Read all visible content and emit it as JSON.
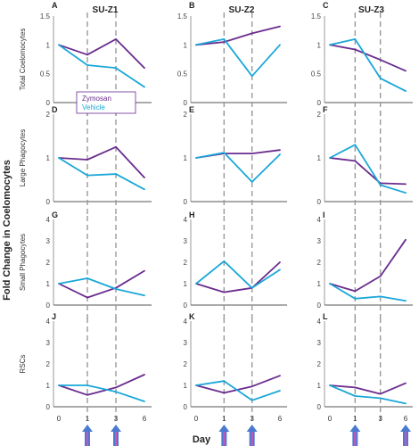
{
  "figure": {
    "y_axis_title": "Fold Change in Coelomocytes",
    "x_axis_title": "Day",
    "columns": [
      "SU-Z1",
      "SU-Z2",
      "SU-Z3"
    ],
    "rows": [
      {
        "label": "Total Coelomocytes",
        "ylim": [
          0,
          1.5
        ],
        "ticks": [
          "0",
          "0.5",
          "1",
          "1.5"
        ]
      },
      {
        "label": "Large Phagocytes",
        "ylim": [
          0,
          2
        ],
        "ticks": [
          "0",
          "1",
          "2"
        ]
      },
      {
        "label": "Small Phagocytes",
        "ylim": [
          0,
          4
        ],
        "ticks": [
          "0",
          "1",
          "2",
          "3",
          "4"
        ]
      },
      {
        "label": "RSCs",
        "ylim": [
          0,
          4
        ],
        "ticks": [
          "0",
          "1",
          "2",
          "3",
          "4"
        ]
      }
    ],
    "x_ticks": [
      "0",
      "1",
      "3",
      "6"
    ],
    "x_tick_columns": [
      0,
      1
    ],
    "x_tick_column3": [
      "0",
      "1",
      "3",
      "6"
    ],
    "legend": [
      {
        "name": "Zymosan",
        "color": "#6a2c8e"
      },
      {
        "name": "Vehicle",
        "color": "#1aa7d9"
      }
    ],
    "dashed_line_days": [
      1,
      3
    ],
    "arrow_days_by_column": [
      [
        1,
        3
      ],
      [
        1,
        3
      ],
      [
        1,
        6
      ]
    ],
    "arrow_color_outer": "#4a7bd0",
    "arrow_color_inner": "#d64fb5",
    "zymosan_color": "#6a2c8e",
    "vehicle_color": "#1aa7d9"
  },
  "chart_data": [
    {
      "type": "line",
      "panel": "A",
      "column": "SU-Z1",
      "row": "Total Coelomocytes",
      "x": [
        "0",
        "1",
        "3",
        "6"
      ],
      "ylim": [
        0,
        1.5
      ],
      "series": [
        {
          "name": "Zymosan",
          "values": [
            1.0,
            0.83,
            1.1,
            0.6
          ]
        },
        {
          "name": "Vehicle",
          "values": [
            1.0,
            0.65,
            0.6,
            0.27
          ]
        }
      ]
    },
    {
      "type": "line",
      "panel": "B",
      "column": "SU-Z2",
      "row": "Total Coelomocytes",
      "x": [
        "0",
        "1",
        "3",
        "6"
      ],
      "ylim": [
        0,
        1.5
      ],
      "series": [
        {
          "name": "Zymosan",
          "values": [
            1.0,
            1.05,
            1.2,
            1.32
          ]
        },
        {
          "name": "Vehicle",
          "values": [
            1.0,
            1.1,
            0.46,
            1.0
          ]
        }
      ]
    },
    {
      "type": "line",
      "panel": "C",
      "column": "SU-Z3",
      "row": "Total Coelomocytes",
      "x": [
        "0",
        "1",
        "3",
        "6"
      ],
      "ylim": [
        0,
        1.5
      ],
      "series": [
        {
          "name": "Zymosan",
          "values": [
            1.0,
            0.92,
            0.74,
            0.55
          ]
        },
        {
          "name": "Vehicle",
          "values": [
            1.0,
            1.1,
            0.42,
            0.2
          ]
        }
      ]
    },
    {
      "type": "line",
      "panel": "D",
      "column": "SU-Z1",
      "row": "Large Phagocytes",
      "x": [
        "0",
        "1",
        "3",
        "6"
      ],
      "ylim": [
        0,
        2
      ],
      "series": [
        {
          "name": "Zymosan",
          "values": [
            1.0,
            0.96,
            1.25,
            0.55
          ]
        },
        {
          "name": "Vehicle",
          "values": [
            1.0,
            0.6,
            0.63,
            0.28
          ]
        }
      ]
    },
    {
      "type": "line",
      "panel": "E",
      "column": "SU-Z2",
      "row": "Large Phagocytes",
      "x": [
        "0",
        "1",
        "3",
        "6"
      ],
      "ylim": [
        0,
        2
      ],
      "series": [
        {
          "name": "Zymosan",
          "values": [
            1.0,
            1.1,
            1.1,
            1.18
          ]
        },
        {
          "name": "Vehicle",
          "values": [
            1.0,
            1.12,
            0.45,
            1.08
          ]
        }
      ]
    },
    {
      "type": "line",
      "panel": "F",
      "column": "SU-Z3",
      "row": "Large Phagocytes",
      "x": [
        "0",
        "1",
        "3",
        "6"
      ],
      "ylim": [
        0,
        2
      ],
      "series": [
        {
          "name": "Zymosan",
          "values": [
            1.0,
            0.93,
            0.42,
            0.4
          ]
        },
        {
          "name": "Vehicle",
          "values": [
            1.0,
            1.3,
            0.38,
            0.2
          ]
        }
      ]
    },
    {
      "type": "line",
      "panel": "G",
      "column": "SU-Z1",
      "row": "Small Phagocytes",
      "x": [
        "0",
        "1",
        "3",
        "6"
      ],
      "ylim": [
        0,
        4
      ],
      "series": [
        {
          "name": "Zymosan",
          "values": [
            1.0,
            0.35,
            0.8,
            1.6
          ]
        },
        {
          "name": "Vehicle",
          "values": [
            1.0,
            1.25,
            0.75,
            0.45
          ]
        }
      ]
    },
    {
      "type": "line",
      "panel": "H",
      "column": "SU-Z2",
      "row": "Small Phagocytes",
      "x": [
        "0",
        "1",
        "3",
        "6"
      ],
      "ylim": [
        0,
        4
      ],
      "series": [
        {
          "name": "Zymosan",
          "values": [
            1.0,
            0.6,
            0.8,
            2.0
          ]
        },
        {
          "name": "Vehicle",
          "values": [
            1.0,
            2.05,
            0.8,
            1.65
          ]
        }
      ]
    },
    {
      "type": "line",
      "panel": "I",
      "column": "SU-Z3",
      "row": "Small Phagocytes",
      "x": [
        "0",
        "1",
        "3",
        "6"
      ],
      "ylim": [
        0,
        4
      ],
      "series": [
        {
          "name": "Zymosan",
          "values": [
            1.0,
            0.65,
            1.35,
            3.05
          ]
        },
        {
          "name": "Vehicle",
          "values": [
            1.0,
            0.3,
            0.4,
            0.2
          ]
        }
      ]
    },
    {
      "type": "line",
      "panel": "J",
      "column": "SU-Z1",
      "row": "RSCs",
      "x": [
        "0",
        "1",
        "3",
        "6"
      ],
      "ylim": [
        0,
        4
      ],
      "series": [
        {
          "name": "Zymosan",
          "values": [
            1.0,
            0.55,
            0.9,
            1.5
          ]
        },
        {
          "name": "Vehicle",
          "values": [
            1.0,
            1.0,
            0.7,
            0.25
          ]
        }
      ]
    },
    {
      "type": "line",
      "panel": "K",
      "column": "SU-Z2",
      "row": "RSCs",
      "x": [
        "0",
        "1",
        "3",
        "6"
      ],
      "ylim": [
        0,
        4
      ],
      "series": [
        {
          "name": "Zymosan",
          "values": [
            1.0,
            0.65,
            0.95,
            1.45
          ]
        },
        {
          "name": "Vehicle",
          "values": [
            1.0,
            1.2,
            0.3,
            0.75
          ]
        }
      ]
    },
    {
      "type": "line",
      "panel": "L",
      "column": "SU-Z3",
      "row": "RSCs",
      "x": [
        "0",
        "1",
        "3",
        "6"
      ],
      "ylim": [
        0,
        4
      ],
      "series": [
        {
          "name": "Zymosan",
          "values": [
            1.0,
            0.9,
            0.6,
            1.1
          ]
        },
        {
          "name": "Vehicle",
          "values": [
            1.0,
            0.5,
            0.4,
            0.15
          ]
        }
      ]
    }
  ]
}
